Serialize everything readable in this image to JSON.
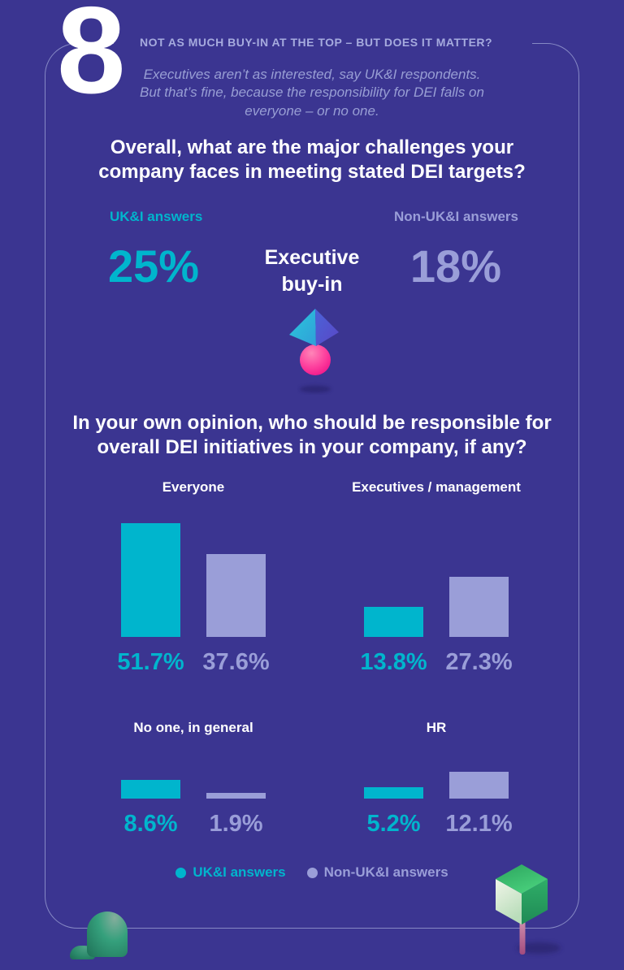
{
  "page": {
    "background": "#3b3591",
    "accent_teal": "#00b5cd",
    "accent_lavender": "#9a9ed8",
    "border_color": "#a0a5d7"
  },
  "header": {
    "number": "8",
    "title": "NOT AS MUCH BUY-IN AT THE TOP – BUT DOES IT MATTER?",
    "subtitle": "Executives aren’t as interested, say UK&I respondents.\nBut that’s fine, because the responsibility for DEI falls on\neveryone – or no one."
  },
  "question1": {
    "text": "Overall, what are the major challenges your\ncompany faces in meeting stated DEI targets?",
    "left_label": "UK&I answers",
    "right_label": "Non-UK&I answers",
    "left_value": "25%",
    "topic": "Executive\nbuy-in",
    "right_value": "18%"
  },
  "question2": {
    "text": "In your own opinion, who should be responsible for\noverall DEI initiatives in your company, if any?"
  },
  "chart_data": {
    "type": "bar",
    "title": "In your own opinion, who should be responsible for overall DEI initiatives in your company, if any?",
    "unit": "percent of respondents",
    "value_suffix": "%",
    "legend_position": "bottom",
    "grid": false,
    "series": [
      {
        "name": "UK&I answers",
        "color": "#00b5cd"
      },
      {
        "name": "Non-UK&I answers",
        "color": "#9a9ed8"
      }
    ],
    "groups": [
      {
        "label": "Everyone",
        "values": [
          51.7,
          37.6
        ]
      },
      {
        "label": "Executives / management",
        "values": [
          13.8,
          27.3
        ]
      },
      {
        "label": "No one, in general",
        "values": [
          8.6,
          1.9
        ]
      },
      {
        "label": "HR",
        "values": [
          5.2,
          12.1
        ]
      }
    ]
  }
}
